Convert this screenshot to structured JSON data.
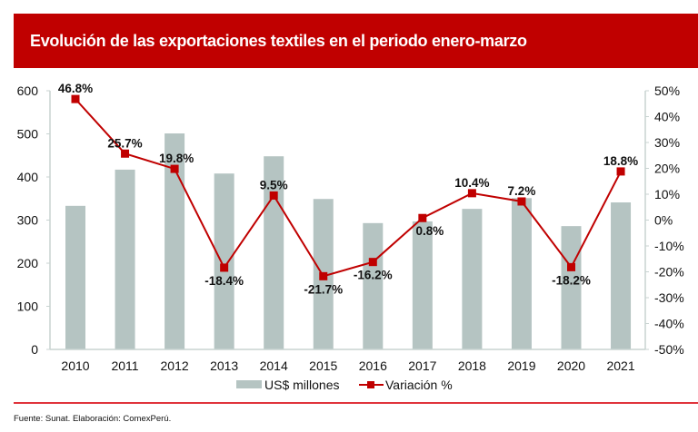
{
  "header": {
    "title": "Evolución de las exportaciones textiles en el periodo enero-marzo"
  },
  "footer": {
    "source": "Fuente: Sunat. Elaboración: ComexPerú."
  },
  "colors": {
    "banner": "#c00000",
    "bars": "#b5c4c2",
    "line": "#c00000",
    "axis": "#c8d3d1"
  },
  "chart_data": {
    "type": "bar+line",
    "title": "Evolución de las exportaciones textiles en el periodo enero-marzo",
    "categories": [
      "2010",
      "2011",
      "2012",
      "2013",
      "2014",
      "2015",
      "2016",
      "2017",
      "2018",
      "2019",
      "2020",
      "2021"
    ],
    "series": [
      {
        "name": "US$ millones",
        "type": "bar",
        "axis": "left",
        "values": [
          333,
          417,
          501,
          408,
          448,
          349,
          293,
          297,
          326,
          351,
          286,
          341
        ]
      },
      {
        "name": "Variación %",
        "type": "line",
        "axis": "right",
        "values": [
          46.8,
          25.7,
          19.8,
          -18.4,
          9.5,
          -21.7,
          -16.2,
          0.8,
          10.4,
          7.2,
          -18.2,
          18.8
        ],
        "labels": [
          "46.8%",
          "25.7%",
          "19.8%",
          "-18.4%",
          "9.5%",
          "-21.7%",
          "-16.2%",
          "0.8%",
          "10.4%",
          "7.2%",
          "-18.2%",
          "18.8%"
        ]
      }
    ],
    "left_axis": {
      "ylim": [
        0,
        600
      ],
      "ticks": [
        0,
        100,
        200,
        300,
        400,
        500,
        600
      ],
      "tick_labels": [
        "0",
        "100",
        "200",
        "300",
        "400",
        "500",
        "600"
      ]
    },
    "right_axis": {
      "ylim": [
        -50,
        50
      ],
      "ticks": [
        -50,
        -40,
        -30,
        -20,
        -10,
        0,
        10,
        20,
        30,
        40,
        50
      ],
      "tick_labels": [
        "-50%",
        "-40%",
        "-30%",
        "-20%",
        "-10%",
        "0%",
        "10%",
        "20%",
        "30%",
        "40%",
        "50%"
      ]
    },
    "legend": {
      "position": "bottom",
      "entries": [
        "US$ millones",
        "Variación %"
      ]
    },
    "grid": false,
    "xlabel": "",
    "ylabel": ""
  }
}
